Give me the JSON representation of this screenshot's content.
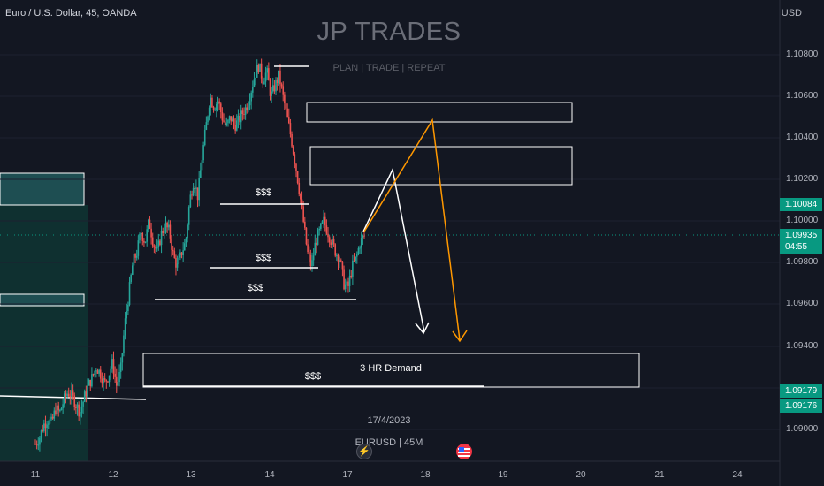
{
  "header": {
    "symbol_title": "Euro / U.S. Dollar, 45, OANDA",
    "currency": "USD"
  },
  "watermark": {
    "title": "JP TRADES",
    "tagline": "PLAN |  TRADE | REPEAT",
    "date": "17/4/2023",
    "symbol": "EURUSD | 45M"
  },
  "price_axis": {
    "labels": [
      "1.10800",
      "1.10600",
      "1.10400",
      "1.10200",
      "1.10000",
      "1.09800",
      "1.09600",
      "1.09400",
      "1.09000"
    ],
    "badges": {
      "high": {
        "value": "1.10084",
        "color": "#089981"
      },
      "last": {
        "value": "1.09935",
        "countdown": "04:55",
        "color": "#089981"
      },
      "level_a": {
        "value": "1.09179",
        "color": "#089981"
      },
      "level_b": {
        "value": "1.09176",
        "color": "#089981"
      }
    }
  },
  "time_axis": {
    "labels": [
      "11",
      "12",
      "13",
      "14",
      "17",
      "18",
      "19",
      "20",
      "21",
      "24"
    ]
  },
  "annotations": {
    "liquidity": "$$$",
    "demand_zone": "3 HR Demand"
  },
  "icons": {
    "lightning": "lightning-icon",
    "flag": "us-flag-icon"
  },
  "colors": {
    "bull": "#26a69a",
    "bear": "#ef5350",
    "projection_a": "#ffffff",
    "projection_b": "#ff9800"
  },
  "chart_data": {
    "type": "candlestick",
    "symbol": "EURUSD",
    "timeframe": "45",
    "ylim": [
      1.0885,
      1.1092
    ],
    "last_price": 1.09935,
    "zones": [
      {
        "label": "3 HR Demand",
        "from": 1.0918,
        "to": 1.0937
      },
      {
        "label": "",
        "from": 1.1034,
        "to": 1.1017
      },
      {
        "label": "",
        "from": 1.1056,
        "to": 1.1048
      }
    ],
    "liquidity_levels": [
      1.1008,
      1.0977,
      1.0963,
      1.0918
    ],
    "series_path": [
      1.0893,
      1.0896,
      1.0902,
      1.0905,
      1.0903,
      1.091,
      1.0908,
      1.0914,
      1.0918,
      1.0916,
      1.0912,
      1.0908,
      1.0915,
      1.0921,
      1.0925,
      1.093,
      1.0927,
      1.0922,
      1.0926,
      1.0932,
      1.0921,
      1.0928,
      1.095,
      1.0965,
      1.098,
      1.0985,
      1.0995,
      1.099,
      1.1,
      1.099,
      1.0985,
      1.0994,
      1.0998,
      1.0995,
      1.0983,
      1.0978,
      1.0985,
      1.099,
      1.101,
      1.102,
      1.1012,
      1.103,
      1.1045,
      1.106,
      1.1055,
      1.1058,
      1.105,
      1.1045,
      1.105,
      1.1046,
      1.1048,
      1.1052,
      1.1055,
      1.1062,
      1.107,
      1.1075,
      1.1068,
      1.1072,
      1.106,
      1.1065,
      1.107,
      1.106,
      1.105,
      1.104,
      1.1028,
      1.1015,
      1.1,
      1.0985,
      1.0978,
      1.099,
      1.0995,
      1.1,
      1.0995,
      1.099,
      1.0985,
      1.0982,
      1.097,
      1.0968,
      1.0978,
      1.0982,
      1.099,
      1.0993
    ],
    "projections": [
      {
        "name": "",
        "color": "#ffffff",
        "points": [
          [
            0,
            1.0996
          ],
          [
            1,
            1.1025
          ],
          [
            2,
            1.0942
          ]
        ]
      },
      {
        "name": "",
        "color": "#ff9800",
        "points": [
          [
            0,
            1.0996
          ],
          [
            1,
            1.105
          ],
          [
            2,
            1.0938
          ]
        ]
      }
    ]
  }
}
